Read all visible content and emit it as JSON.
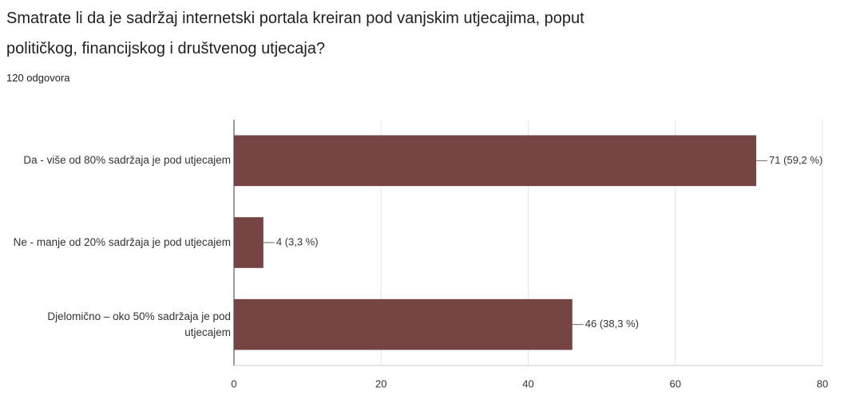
{
  "chart_data": {
    "type": "hbar",
    "title": "Smatrate li da je sadržaj internetski portala kreiran pod vanjskim utjecajima, poput političkog, financijskog i društvenog utjecaja?",
    "subtitle": "120 odgovora",
    "categories": [
      "Da - više od 80% sadržaja je pod utjecajem",
      "Ne - manje od 20% sadržaja je pod utjecajem",
      "Djelomično – oko 50% sadržaja je pod utjecajem"
    ],
    "values": [
      71,
      4,
      46
    ],
    "value_labels": [
      "71 (59,2 %)",
      "4 (3,3 %)",
      "46 (38,3 %)"
    ],
    "color": "#774444",
    "xlim": [
      0,
      80
    ],
    "xticks": [
      0,
      20,
      40,
      60,
      80
    ],
    "grid": true
  }
}
